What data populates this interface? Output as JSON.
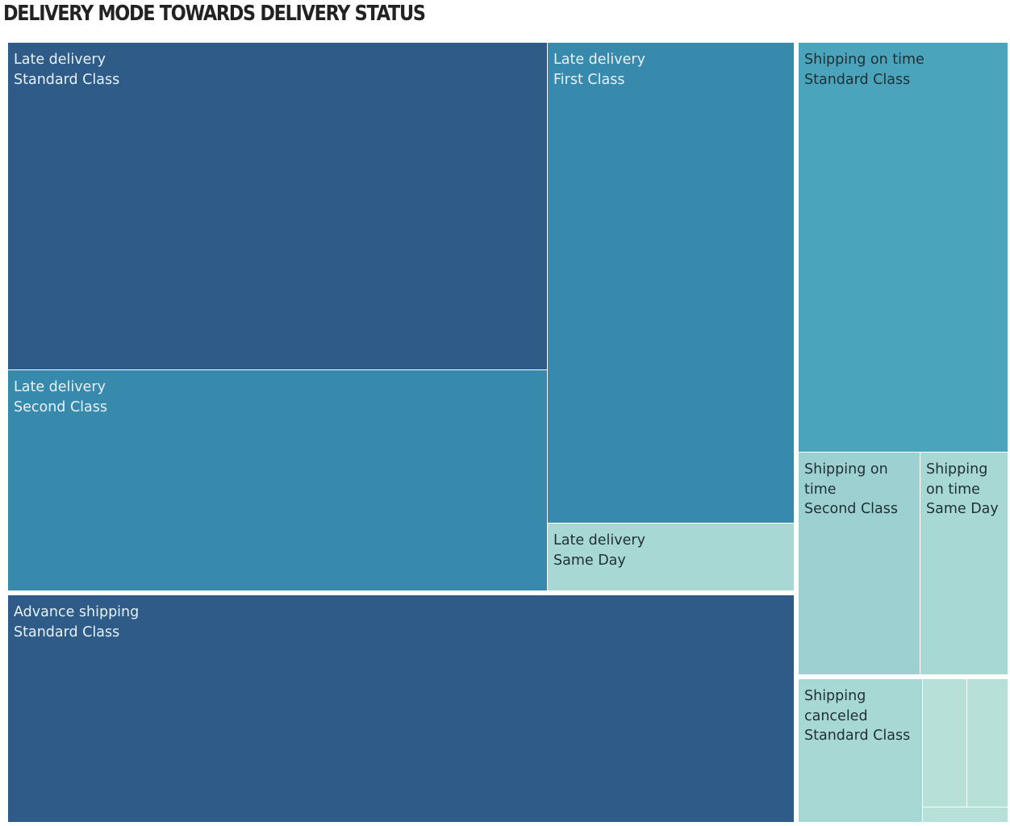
{
  "title": "DELIVERY MODE TOWARDS DELIVERY STATUS",
  "colors": {
    "dark": "#2e5b87",
    "mid": "#388aad",
    "teal": "#4aa4bb",
    "light": "#9dd1d1",
    "lighter": "#a7d8d4",
    "palest": "#b7e1d8",
    "text_light": "#e8f1f6",
    "text_dark": "#1f2f33"
  },
  "chart_data": {
    "type": "treemap",
    "title": "DELIVERY MODE TOWARDS DELIVERY STATUS",
    "groups": [
      {
        "delivery_status": "Late delivery",
        "cells": [
          {
            "delivery_status": "Late delivery",
            "shipping_mode": "Standard Class",
            "value": 272,
            "label_lines": [
              "Late delivery",
              "Standard Class"
            ]
          },
          {
            "delivery_status": "Late delivery",
            "shipping_mode": "Second Class",
            "value": 183,
            "label_lines": [
              "Late delivery",
              "Second Class"
            ]
          },
          {
            "delivery_status": "Late delivery",
            "shipping_mode": "First Class",
            "value": 198,
            "label_lines": [
              "Late delivery",
              "First Class"
            ]
          },
          {
            "delivery_status": "Late delivery",
            "shipping_mode": "Same Day",
            "value": 26,
            "label_lines": [
              "Late delivery",
              "Same Day"
            ]
          }
        ]
      },
      {
        "delivery_status": "Advance shipping",
        "cells": [
          {
            "delivery_status": "Advance shipping",
            "shipping_mode": "Standard Class",
            "value": 282,
            "label_lines": [
              "Advance shipping",
              "Standard Class"
            ]
          }
        ]
      },
      {
        "delivery_status": "Shipping on time",
        "cells": [
          {
            "delivery_status": "Shipping on time",
            "shipping_mode": "Standard Class",
            "value": 131,
            "label_lines": [
              "Shipping on time",
              "Standard Class"
            ]
          },
          {
            "delivery_status": "Shipping on time",
            "shipping_mode": "Second Class",
            "value": 42,
            "label_lines": [
              "Shipping on",
              "time",
              "Second Class"
            ]
          },
          {
            "delivery_status": "Shipping on time",
            "shipping_mode": "Same Day",
            "value": 30,
            "label_lines": [
              "Shipping",
              "on time",
              "Same Day"
            ]
          }
        ]
      },
      {
        "delivery_status": "Shipping canceled",
        "cells": [
          {
            "delivery_status": "Shipping canceled",
            "shipping_mode": "Standard Class",
            "value": 27,
            "label_lines": [
              "Shipping",
              "canceled",
              "Standard Class"
            ]
          },
          {
            "delivery_status": "Shipping canceled",
            "shipping_mode": "",
            "value": 9,
            "label_lines": []
          },
          {
            "delivery_status": "Shipping canceled",
            "shipping_mode": "",
            "value": 9,
            "label_lines": []
          },
          {
            "delivery_status": "Shipping canceled",
            "shipping_mode": "",
            "value": 2,
            "label_lines": []
          }
        ]
      }
    ]
  }
}
